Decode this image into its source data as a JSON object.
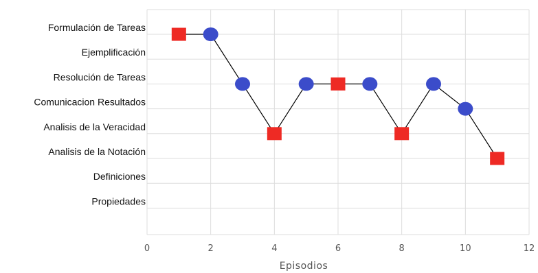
{
  "chart_data": {
    "type": "line",
    "xlabel": "Episodios",
    "xlim": [
      0,
      12
    ],
    "x_ticks": [
      0,
      2,
      4,
      6,
      8,
      10,
      12
    ],
    "categories": [
      "Formulación de Tareas",
      "Ejemplificación",
      "Resolución de Tareas",
      "Comunicacion Resultados",
      "Analisis de la Veracidad",
      "Analisis de la Notación",
      "Definiciones",
      "Propiedades"
    ],
    "grid": true,
    "colors": {
      "circle": "#3b4cca",
      "square": "#ee2a24",
      "line": "#000000",
      "grid": "#dddddd"
    },
    "points": [
      {
        "x": 1,
        "category": "Formulación de Tareas",
        "marker": "square"
      },
      {
        "x": 2,
        "category": "Formulación de Tareas",
        "marker": "circle"
      },
      {
        "x": 3,
        "category": "Resolución de Tareas",
        "marker": "circle"
      },
      {
        "x": 4,
        "category": "Analisis de la Veracidad",
        "marker": "square"
      },
      {
        "x": 5,
        "category": "Resolución de Tareas",
        "marker": "circle"
      },
      {
        "x": 6,
        "category": "Resolución de Tareas",
        "marker": "square"
      },
      {
        "x": 7,
        "category": "Resolución de Tareas",
        "marker": "circle"
      },
      {
        "x": 8,
        "category": "Analisis de la Veracidad",
        "marker": "square"
      },
      {
        "x": 9,
        "category": "Resolución de Tareas",
        "marker": "circle"
      },
      {
        "x": 10,
        "category": "Comunicacion Resultados",
        "marker": "circle"
      },
      {
        "x": 11,
        "category": "Analisis de la Notación",
        "marker": "square"
      }
    ]
  }
}
